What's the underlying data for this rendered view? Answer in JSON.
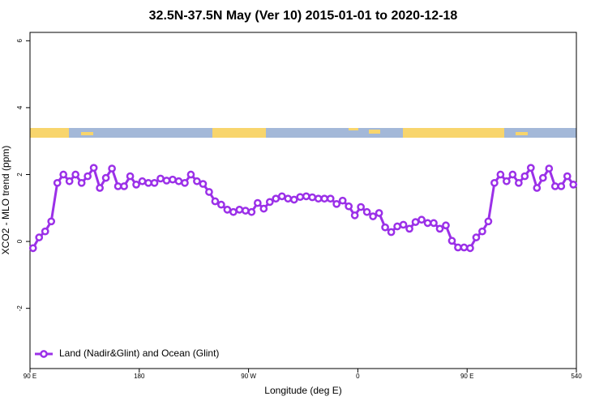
{
  "chart_data": {
    "type": "line",
    "title": "32.5N-37.5N May (Ver 10)   2015-01-01 to 2020-12-18",
    "x_label": "Longitude (deg E)",
    "y_label": "XCO2 - MLO trend (ppm)",
    "x": [
      92.5,
      97.5,
      102.5,
      107.5,
      112.5,
      117.5,
      122.5,
      127.5,
      132.5,
      137.5,
      142.5,
      147.5,
      152.5,
      157.5,
      162.5,
      167.5,
      172.5,
      177.5,
      182.5,
      187.5,
      192.5,
      197.5,
      202.5,
      207.5,
      212.5,
      217.5,
      222.5,
      227.5,
      232.5,
      237.5,
      242.5,
      247.5,
      252.5,
      257.5,
      262.5,
      267.5,
      272.5,
      277.5,
      282.5,
      287.5,
      292.5,
      297.5,
      302.5,
      307.5,
      312.5,
      317.5,
      322.5,
      327.5,
      332.5,
      337.5,
      342.5,
      347.5,
      352.5,
      357.5,
      362.5,
      367.5,
      372.5,
      377.5,
      382.5,
      387.5,
      392.5,
      397.5,
      402.5,
      407.5,
      412.5,
      417.5,
      422.5,
      427.5,
      432.5,
      437.5,
      442.5,
      447.5,
      452.5,
      457.5,
      462.5,
      467.5,
      472.5,
      477.5,
      482.5,
      487.5,
      492.5,
      497.5,
      502.5,
      507.5,
      512.5,
      517.5,
      522.5,
      527.5,
      532.5,
      537.5
    ],
    "series": [
      {
        "name": "Land (Nadir&Glint) and Ocean (Glint)",
        "color": "#9b30e8",
        "values": [
          -0.2,
          0.12,
          0.3,
          0.6,
          1.75,
          2.0,
          1.8,
          2.0,
          1.75,
          1.95,
          2.2,
          1.6,
          1.9,
          2.18,
          1.65,
          1.65,
          1.95,
          1.7,
          1.8,
          1.75,
          1.75,
          1.88,
          1.82,
          1.85,
          1.8,
          1.75,
          2.0,
          1.8,
          1.72,
          1.48,
          1.2,
          1.1,
          0.95,
          0.88,
          0.95,
          0.92,
          0.88,
          1.15,
          0.98,
          1.18,
          1.28,
          1.35,
          1.28,
          1.25,
          1.33,
          1.35,
          1.32,
          1.28,
          1.28,
          1.28,
          1.12,
          1.22,
          1.05,
          0.78,
          1.03,
          0.88,
          0.75,
          0.85,
          0.42,
          0.28,
          0.45,
          0.5,
          0.38,
          0.58,
          0.65,
          0.55,
          0.55,
          0.38,
          0.48,
          0.02,
          -0.18,
          -0.18,
          -0.2,
          0.12,
          0.3,
          0.6,
          1.75,
          2.0,
          1.8,
          2.0,
          1.75,
          1.95,
          2.2,
          1.6,
          1.9,
          2.18,
          1.65,
          1.65,
          1.95,
          1.7
        ]
      }
    ],
    "xlim": [
      90,
      540
    ],
    "xticks": [
      {
        "value": 90,
        "label": "90 E"
      },
      180,
      {
        "value": 270,
        "label": "90 W"
      },
      {
        "value": 360,
        "label": "0"
      },
      {
        "value": 450,
        "label": "90 E"
      },
      540
    ],
    "ylim": [
      -3.8,
      6.25
    ],
    "yticks": [
      -2,
      0,
      2,
      4,
      6
    ],
    "grid": false,
    "legend": "bottom-left"
  }
}
